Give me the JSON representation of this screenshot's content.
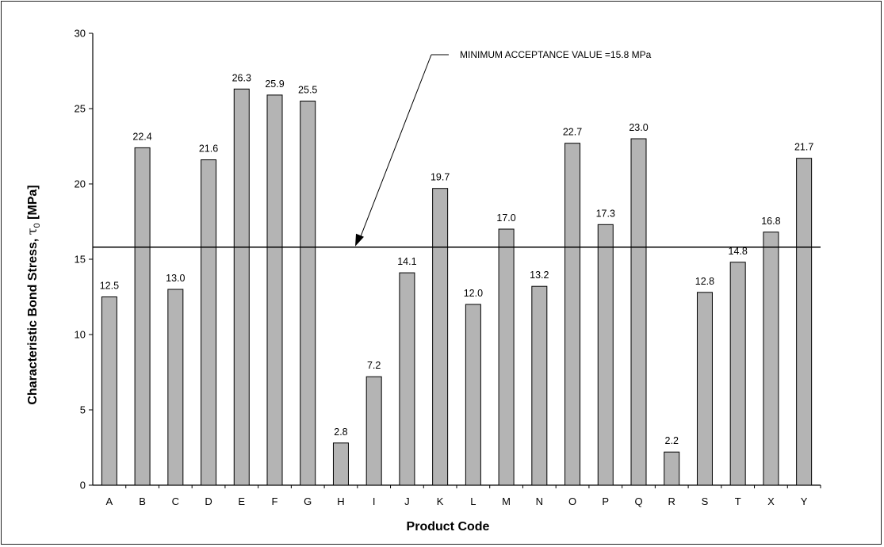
{
  "chart_data": {
    "type": "bar",
    "categories": [
      "A",
      "B",
      "C",
      "D",
      "E",
      "F",
      "G",
      "H",
      "I",
      "J",
      "K",
      "L",
      "M",
      "N",
      "O",
      "P",
      "Q",
      "R",
      "S",
      "T",
      "X",
      "Y"
    ],
    "values": [
      12.5,
      22.4,
      13.0,
      21.6,
      26.3,
      25.9,
      25.5,
      2.8,
      7.2,
      14.1,
      19.7,
      12.0,
      17.0,
      13.2,
      22.7,
      17.3,
      23.0,
      2.2,
      12.8,
      14.8,
      16.8,
      21.7
    ],
    "value_labels": [
      "12.5",
      "22.4",
      "13.0",
      "21.6",
      "26.3",
      "25.9",
      "25.5",
      "2.8",
      "7.2",
      "14.1",
      "19.7",
      "12.0",
      "17.0",
      "13.2",
      "22.7",
      "17.3",
      "23.0",
      "2.2",
      "12.8",
      "14.8",
      "16.8",
      "21.7"
    ],
    "xlabel": "Product Code",
    "ylabel_main": "Characteristic Bond Stress, ",
    "ylabel_symbol": "τ",
    "ylabel_subscript": "0",
    "ylabel_unit": " [MPa]",
    "ylim": [
      0,
      30
    ],
    "yticks": [
      0,
      5,
      10,
      15,
      20,
      25,
      30
    ],
    "ytick_labels": [
      "0",
      "5",
      "10",
      "15",
      "20",
      "25",
      "30"
    ],
    "reference_line": {
      "value": 15.8,
      "label": "MINIMUM ACCEPTANCE VALUE =15.8 MPa"
    },
    "grid": false,
    "legend": "none",
    "bar_color": "#b4b4b4"
  }
}
